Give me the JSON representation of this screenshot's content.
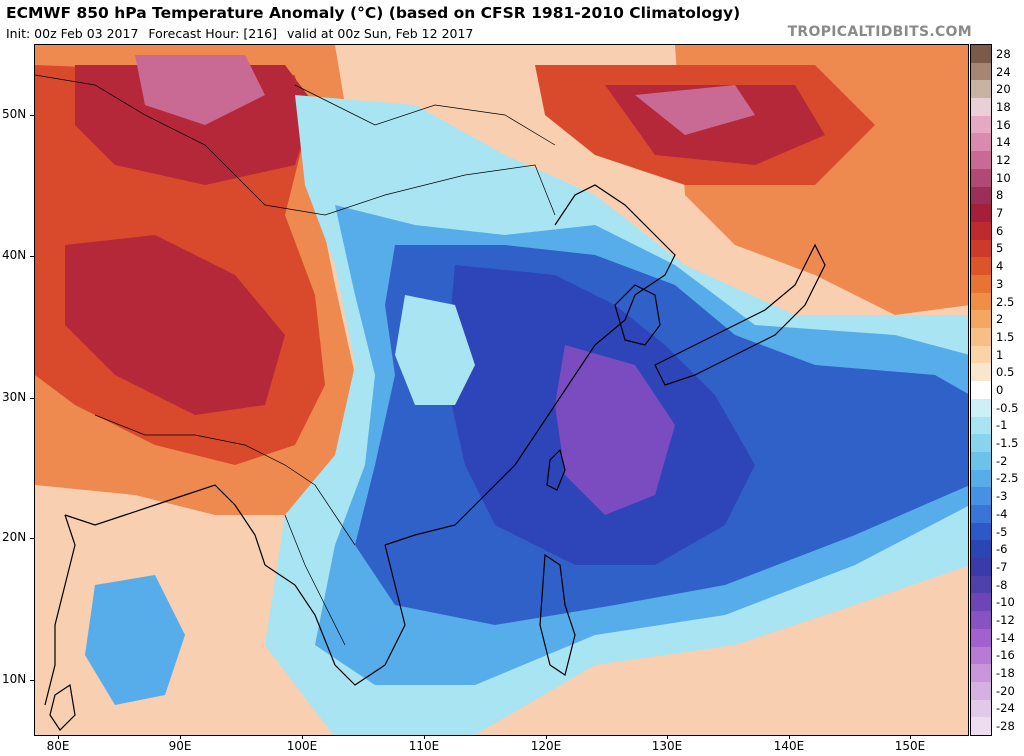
{
  "header": {
    "title": "ECMWF 850 hPa Temperature Anomaly (°C) (based on CFSR 1981-2010 Climatology)",
    "init": "Init: 00z Feb 03 2017",
    "forecast_hour": "Forecast Hour: [216]",
    "valid": "valid at 00z Sun, Feb 12 2017",
    "source": "TROPICALTIDBITS.COM"
  },
  "axes": {
    "lat_labels": [
      "50N",
      "40N",
      "30N",
      "20N",
      "10N"
    ],
    "lon_labels": [
      "80E",
      "90E",
      "100E",
      "110E",
      "120E",
      "130E",
      "140E",
      "150E"
    ]
  },
  "colorbar": {
    "labels": [
      "28",
      "24",
      "20",
      "18",
      "16",
      "14",
      "12",
      "10",
      "8",
      "7",
      "6",
      "5",
      "4",
      "3",
      "2.5",
      "2",
      "1.5",
      "1",
      "0.5",
      "0",
      "-0.5",
      "-1",
      "-1.5",
      "-2",
      "-2.5",
      "-3",
      "-4",
      "-5",
      "-6",
      "-7",
      "-8",
      "-10",
      "-12",
      "-14",
      "-16",
      "-18",
      "-20",
      "-24",
      "-28"
    ],
    "colors": [
      "#7a5a48",
      "#a48672",
      "#c8b2a4",
      "#ead0d6",
      "#e6a9c3",
      "#d98aae",
      "#c86a93",
      "#b04a74",
      "#9a2f58",
      "#a51f3a",
      "#bd2a30",
      "#cd3a2a",
      "#dc5526",
      "#e87431",
      "#ef8f45",
      "#f3a761",
      "#f6bf85",
      "#f8d4a6",
      "#fae6cc",
      "#ffffff",
      "#cdf0f6",
      "#a8e4f2",
      "#86d4ee",
      "#6cc3ea",
      "#56adea",
      "#4691e2",
      "#3875d6",
      "#2d59c6",
      "#2a45b4",
      "#3a3aa8",
      "#5040aa",
      "#6b46b4",
      "#8852c2",
      "#a361cf",
      "#b97ad6",
      "#c996dc",
      "#d6b0e0",
      "#e2c9e8",
      "#eedcf0"
    ]
  },
  "map_colors": {
    "warm_light": "#f8cfb0",
    "warm": "#ee8a4f",
    "warm_strong": "#d84a2b",
    "hot": "#b5283a",
    "pink": "#c86a93",
    "cold_light": "#a8e4f2",
    "cold": "#56adea",
    "cold_strong": "#3061c9",
    "cold_core": "#2d45b8",
    "purple": "#7a4cc0"
  }
}
